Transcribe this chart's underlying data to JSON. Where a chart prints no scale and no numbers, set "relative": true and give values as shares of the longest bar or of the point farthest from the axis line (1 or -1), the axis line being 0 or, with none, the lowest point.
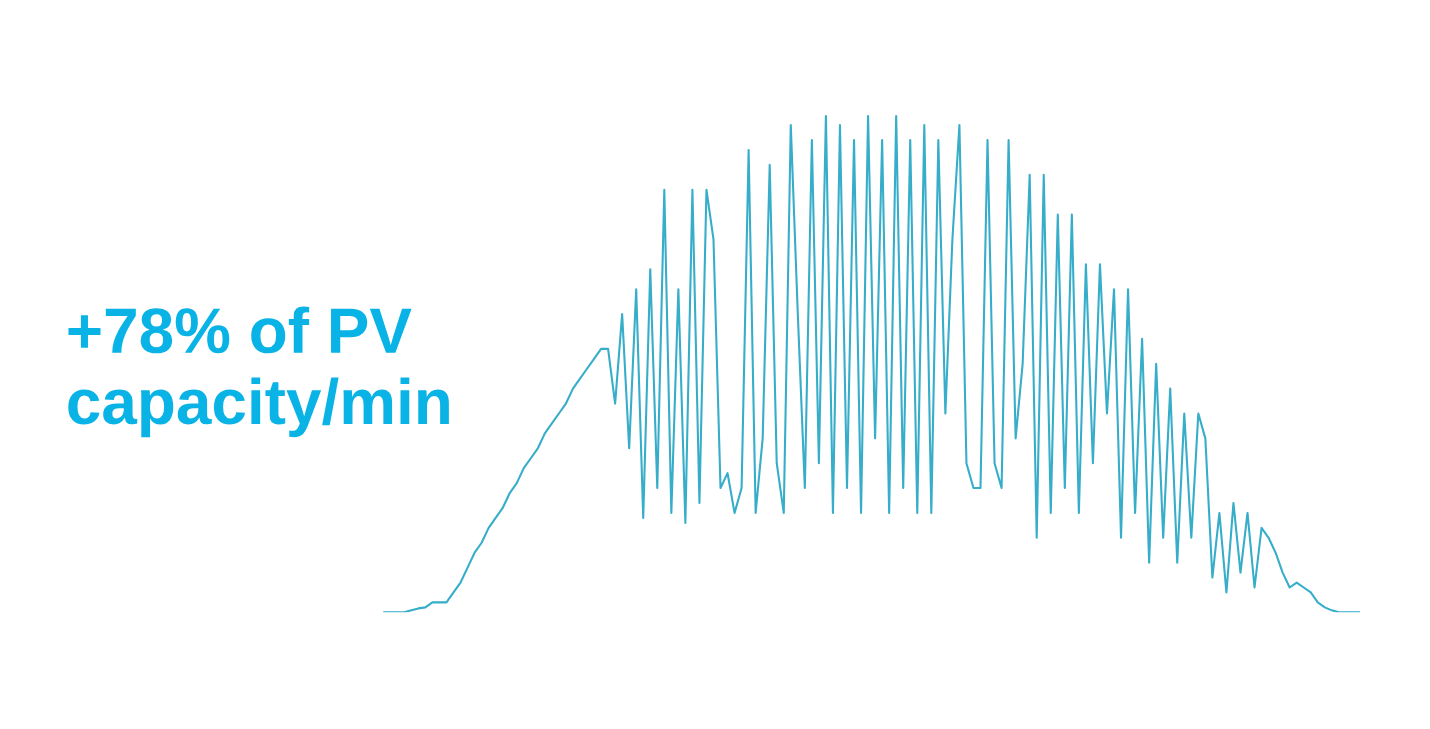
{
  "chart_data": {
    "type": "line",
    "relative": true,
    "legend": false,
    "marker": "none",
    "line_style": "solid",
    "annotations": [
      "+78% of PV\ncapacity/min"
    ],
    "categories": [
      null,
      null,
      null,
      null,
      null,
      null,
      null,
      null,
      null,
      null,
      null,
      null,
      null,
      null,
      null,
      null,
      null,
      null,
      null,
      null,
      null,
      null,
      null,
      null,
      null,
      null,
      null,
      null,
      null,
      null,
      null,
      null,
      null,
      null,
      null,
      null,
      null,
      null,
      null,
      null,
      null,
      null,
      null,
      null,
      null,
      null,
      null,
      null,
      null,
      null,
      null,
      null,
      null,
      null,
      null,
      null,
      null,
      null,
      null,
      null,
      null,
      null,
      null,
      null,
      null,
      null,
      null,
      null,
      null,
      null,
      null,
      null,
      null,
      null,
      null,
      null,
      null,
      null,
      null,
      null,
      null,
      null,
      null,
      null,
      null,
      null,
      null,
      null,
      null,
      null,
      null,
      null,
      null,
      null,
      null,
      null,
      null,
      null,
      null,
      null,
      null,
      null,
      null,
      null,
      null,
      null,
      null,
      null,
      null,
      null,
      null,
      null,
      null,
      null,
      null,
      null,
      null,
      null,
      null,
      null,
      null,
      null,
      null,
      null,
      null,
      null,
      null,
      null,
      null,
      null,
      null,
      null,
      null,
      null,
      null,
      null,
      null,
      null,
      null,
      null
    ],
    "series": [
      {
        "color": "#36adc9",
        "values": [
          0,
          0,
          0,
          0,
          0.004,
          0.008,
          0.01,
          0.02,
          0.02,
          0.02,
          0.04,
          0.06,
          0.09,
          0.12,
          0.14,
          0.17,
          0.19,
          0.21,
          0.24,
          0.26,
          0.29,
          0.31,
          0.33,
          0.36,
          0.38,
          0.4,
          0.42,
          0.45,
          0.47,
          0.49,
          0.51,
          0.53,
          0.53,
          0.42,
          0.6,
          0.33,
          0.65,
          0.19,
          0.69,
          0.25,
          0.85,
          0.2,
          0.65,
          0.18,
          0.85,
          0.22,
          0.85,
          0.75,
          0.25,
          0.28,
          0.2,
          0.25,
          0.93,
          0.2,
          0.35,
          0.9,
          0.3,
          0.2,
          0.98,
          0.6,
          0.25,
          0.95,
          0.3,
          1.0,
          0.2,
          0.98,
          0.25,
          0.95,
          0.2,
          1.0,
          0.35,
          0.95,
          0.2,
          1.0,
          0.25,
          0.95,
          0.2,
          0.98,
          0.2,
          0.95,
          0.4,
          0.75,
          0.98,
          0.3,
          0.25,
          0.25,
          0.95,
          0.3,
          0.25,
          0.95,
          0.35,
          0.5,
          0.88,
          0.15,
          0.88,
          0.2,
          0.8,
          0.25,
          0.8,
          0.2,
          0.7,
          0.3,
          0.7,
          0.4,
          0.65,
          0.15,
          0.65,
          0.2,
          0.55,
          0.1,
          0.5,
          0.15,
          0.45,
          0.1,
          0.4,
          0.15,
          0.4,
          0.35,
          0.07,
          0.2,
          0.04,
          0.22,
          0.08,
          0.2,
          0.05,
          0.17,
          0.15,
          0.12,
          0.08,
          0.05,
          0.06,
          0.05,
          0.04,
          0.02,
          0.01,
          0.004,
          0,
          0,
          0,
          0
        ]
      }
    ]
  }
}
